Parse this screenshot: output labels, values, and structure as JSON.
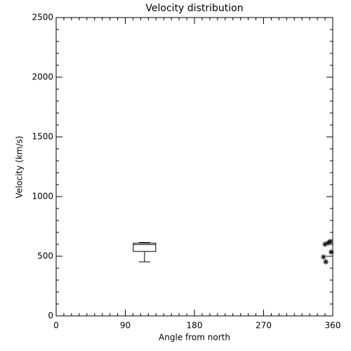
{
  "chart_data": {
    "type": "box",
    "title": "Velocity distribution",
    "x_label": "Angle from north",
    "y_label": "Velocity (km/s)",
    "xlim": [
      0,
      360
    ],
    "xticks": [
      0,
      90,
      180,
      270,
      360
    ],
    "ylim": [
      0,
      2500
    ],
    "yticks": [
      0,
      500,
      1000,
      1500,
      2000,
      2500
    ],
    "color": "#000000",
    "boxes": [
      {
        "x": 115,
        "min": 453,
        "q1": 540,
        "median": 598,
        "q3": 610,
        "max": 615
      }
    ],
    "points": {
      "x": [
        350,
        354,
        357,
        358,
        348,
        351
      ],
      "y": [
        600,
        612,
        624,
        535,
        494,
        453
      ]
    }
  }
}
